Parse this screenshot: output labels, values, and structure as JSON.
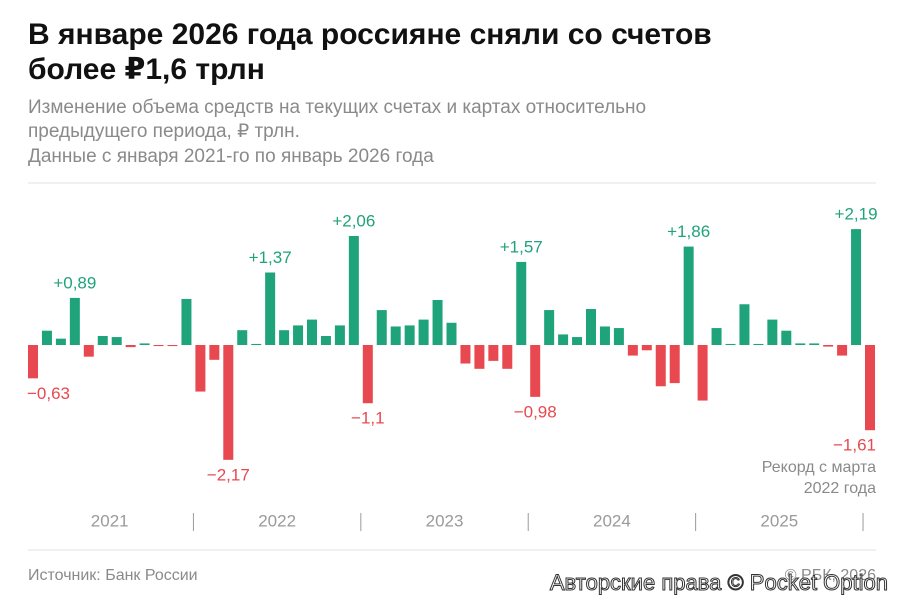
{
  "chart_data": {
    "type": "bar",
    "title": [
      "В январе 2026 года россияне сняли со счетов",
      "более ₽1,6 трлн"
    ],
    "subtitle": [
      "Изменение объема средств на текущих счетах и картах относительно",
      "предыдущего периода, ₽ трлн.",
      "Данные с января 2021-го по январь 2026 года"
    ],
    "years": [
      "2021",
      "2022",
      "2023",
      "2024",
      "2025"
    ],
    "values": [
      -0.63,
      0.27,
      0.12,
      0.89,
      -0.22,
      0.17,
      0.15,
      -0.04,
      0.03,
      -0.02,
      -0.02,
      0.87,
      -0.88,
      -0.28,
      -2.17,
      0.28,
      0.02,
      1.37,
      0.28,
      0.37,
      0.48,
      0.17,
      0.37,
      2.06,
      -1.1,
      0.66,
      0.35,
      0.37,
      0.48,
      0.85,
      0.42,
      -0.35,
      -0.45,
      -0.3,
      -0.45,
      1.57,
      -0.98,
      0.66,
      0.2,
      0.15,
      0.68,
      0.35,
      0.32,
      -0.2,
      -0.1,
      -0.78,
      -0.72,
      1.86,
      -1.05,
      0.32,
      0.02,
      0.77,
      0.02,
      0.48,
      0.27,
      0.03,
      0.03,
      -0.03,
      -0.2,
      2.19,
      -1.61
    ],
    "value_labels": [
      "−0,63",
      null,
      null,
      "+0,89",
      null,
      null,
      null,
      null,
      null,
      null,
      null,
      null,
      null,
      null,
      "−2,17",
      null,
      null,
      "+1,37",
      null,
      null,
      null,
      null,
      null,
      "+2,06",
      "−1,1",
      null,
      null,
      null,
      null,
      null,
      null,
      null,
      null,
      null,
      null,
      "+1,57",
      "−0,98",
      null,
      null,
      null,
      null,
      null,
      null,
      null,
      null,
      null,
      null,
      "+1,86",
      null,
      null,
      null,
      null,
      null,
      null,
      null,
      null,
      null,
      null,
      null,
      "+2,19",
      "−1,61"
    ],
    "positive_color": "#1fa37a",
    "negative_color": "#e8484f",
    "ylim": [
      -2.4,
      2.4
    ],
    "annotation": [
      "Рекорд с марта",
      "2022 года"
    ],
    "source": "Источник: Банк России",
    "credit": "© РБК, 2026",
    "watermark": "Авторские права © Pocket Option"
  }
}
